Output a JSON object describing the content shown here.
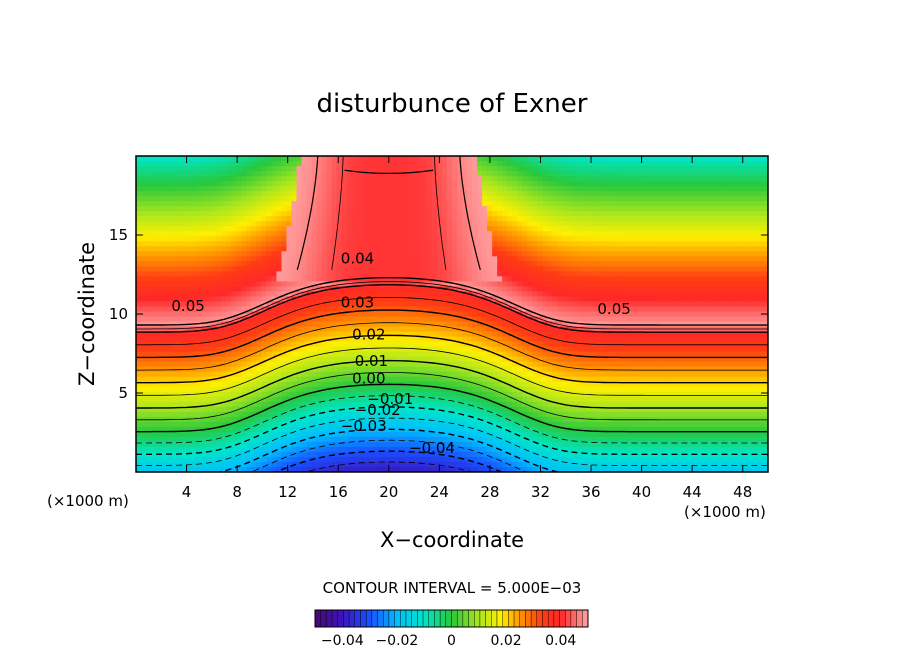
{
  "chart_data": {
    "type": "contour",
    "title": "disturbunce of Exner",
    "xlabel": "X−coordinate",
    "ylabel": "Z−coordinate",
    "x_unit_left": "(×1000 m)",
    "x_unit_right": "(×1000 m)",
    "xlim": [
      0,
      50
    ],
    "ylim": [
      0,
      20
    ],
    "x_ticks": [
      4,
      8,
      12,
      16,
      20,
      24,
      28,
      32,
      36,
      40,
      44,
      48
    ],
    "x_tick_labels": [
      "4",
      "8",
      "12",
      "16",
      "20",
      "24",
      "28",
      "32",
      "36",
      "40",
      "44",
      "48"
    ],
    "y_ticks": [
      5,
      10,
      15
    ],
    "y_tick_labels": [
      "5",
      "10",
      "15"
    ],
    "contour_interval_text": "CONTOUR INTERVAL = 5.000E−03",
    "value_range": [
      -0.05,
      0.05
    ],
    "contour_labels": [
      {
        "text": "0.05",
        "x": 2.8,
        "z": 10.2
      },
      {
        "text": "0.04",
        "x": 16.2,
        "z": 13.2
      },
      {
        "text": "0.03",
        "x": 16.2,
        "z": 10.4
      },
      {
        "text": "0.02",
        "x": 17.1,
        "z": 8.4
      },
      {
        "text": "0.01",
        "x": 17.3,
        "z": 6.7
      },
      {
        "text": "0.00",
        "x": 17.1,
        "z": 5.6
      },
      {
        "text": "−0.01",
        "x": 18.3,
        "z": 4.3
      },
      {
        "text": "−0.02",
        "x": 17.3,
        "z": 3.6
      },
      {
        "text": "−0.03",
        "x": 16.2,
        "z": 2.6
      },
      {
        "text": "−0.04",
        "x": 21.6,
        "z": 1.2
      },
      {
        "text": "0.05",
        "x": 36.5,
        "z": 10.0
      }
    ],
    "colorbar": {
      "min": -0.05,
      "max": 0.05,
      "tick_values": [
        -0.04,
        -0.02,
        0,
        0.02,
        0.04
      ],
      "tick_labels": [
        "−0.04",
        "−0.02",
        "0",
        "0.02",
        "0.04"
      ]
    }
  }
}
